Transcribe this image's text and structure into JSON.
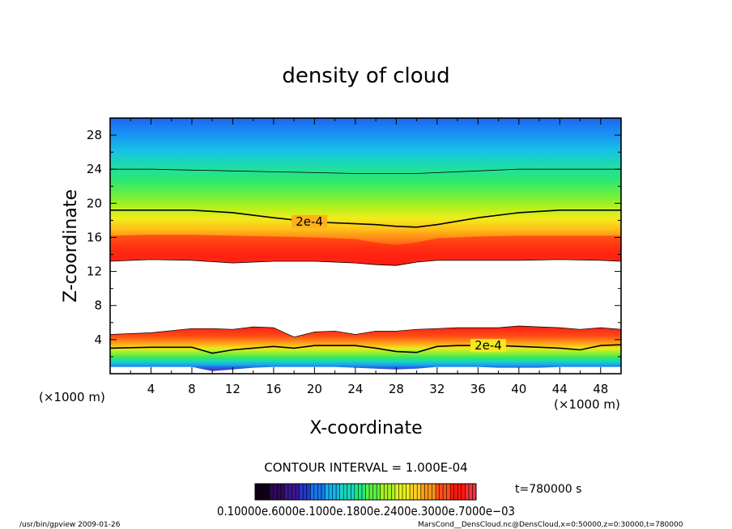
{
  "chart_data": {
    "type": "heatmap",
    "title": "density of cloud",
    "xlabel": "X-coordinate",
    "ylabel": "Z-coordinate",
    "x_unit": "(×1000 m)",
    "y_unit": "(×1000 m)",
    "xlim": [
      0,
      50
    ],
    "ylim": [
      0,
      30
    ],
    "x_ticks": [
      4,
      8,
      12,
      16,
      20,
      24,
      28,
      32,
      36,
      40,
      44,
      48
    ],
    "y_ticks": [
      4,
      8,
      12,
      16,
      20,
      24,
      28
    ],
    "contour_label": "2e-4",
    "upper_cloud": {
      "x": [
        0,
        4,
        8,
        12,
        16,
        20,
        24,
        26,
        28,
        30,
        32,
        36,
        40,
        44,
        48,
        50
      ],
      "top": [
        24,
        24,
        23.9,
        23.8,
        23.7,
        23.6,
        23.5,
        23.5,
        23.5,
        23.5,
        23.6,
        23.8,
        24,
        24,
        24,
        24
      ],
      "contour_2e4": [
        19.2,
        19.2,
        19.2,
        18.9,
        18.3,
        17.8,
        17.6,
        17.5,
        17.3,
        17.2,
        17.5,
        18.3,
        18.9,
        19.2,
        19.2,
        19.2
      ],
      "peak": [
        15.2,
        15.3,
        15.3,
        15.2,
        15.1,
        15.0,
        14.8,
        14.4,
        14.1,
        14.4,
        14.9,
        15.1,
        15.2,
        15.2,
        15.2,
        15.2
      ],
      "bottom": [
        13.2,
        13.4,
        13.3,
        13.0,
        13.2,
        13.2,
        13.0,
        12.8,
        12.7,
        13.1,
        13.3,
        13.3,
        13.3,
        13.4,
        13.3,
        13.2
      ]
    },
    "lower_cloud": {
      "x": [
        0,
        4,
        8,
        10,
        12,
        14,
        16,
        18,
        20,
        22,
        24,
        26,
        28,
        30,
        32,
        34,
        36,
        38,
        40,
        42,
        44,
        46,
        48,
        50
      ],
      "top": [
        4.6,
        4.8,
        5.3,
        5.3,
        5.2,
        5.5,
        5.4,
        4.3,
        4.9,
        5.0,
        4.6,
        5.0,
        5.0,
        5.2,
        5.3,
        5.4,
        5.4,
        5.4,
        5.6,
        5.5,
        5.4,
        5.2,
        5.4,
        5.2
      ],
      "contour_2e4": [
        3.0,
        3.1,
        3.1,
        2.4,
        2.8,
        3.0,
        3.2,
        3.0,
        3.3,
        3.3,
        3.3,
        3.0,
        2.6,
        2.5,
        3.2,
        3.3,
        3.3,
        3.3,
        3.2,
        3.1,
        3.0,
        2.8,
        3.3,
        3.4
      ],
      "bottom": [
        0.8,
        0.8,
        0.8,
        0.3,
        0.5,
        0.7,
        0.8,
        0.8,
        0.8,
        0.8,
        0.7,
        0.6,
        0.5,
        0.6,
        0.8,
        0.8,
        0.8,
        0.7,
        0.7,
        0.7,
        0.8,
        0.8,
        0.8,
        0.8
      ]
    },
    "colorbar": {
      "tick_labels": [
        "0.10000",
        "0.600E-04",
        "0.100E-03",
        "0.180E-03",
        "0.240E-03",
        "0.300E-03",
        "0.700E-03"
      ],
      "colors": [
        "#120016",
        "#2d0a55",
        "#3a1690",
        "#2238c8",
        "#1a74ec",
        "#12b4ec",
        "#16d8c0",
        "#22e880",
        "#5cf040",
        "#a8f020",
        "#e8f020",
        "#ffd020",
        "#ff9818",
        "#ff5018",
        "#ff1810",
        "#f0323c"
      ]
    }
  },
  "header": {
    "title": "density of cloud"
  },
  "axes": {
    "xlabel": "X-coordinate",
    "ylabel": "Z-coordinate",
    "x_unit_left": "(×1000 m)",
    "x_unit_right": "(×1000 m)"
  },
  "footer": {
    "contour_interval": "CONTOUR INTERVAL = 1.000E-04",
    "time_label": "t=780000 s",
    "colorbar_text": "0.10000e.6000e.1000e.1800e.2400e.3000e.7000e−03",
    "program": "/usr/bin/gpview   2009-01-26",
    "source": "MarsCond__DensCloud.nc@DensCloud,x=0:50000,z=0:30000,t=780000"
  }
}
